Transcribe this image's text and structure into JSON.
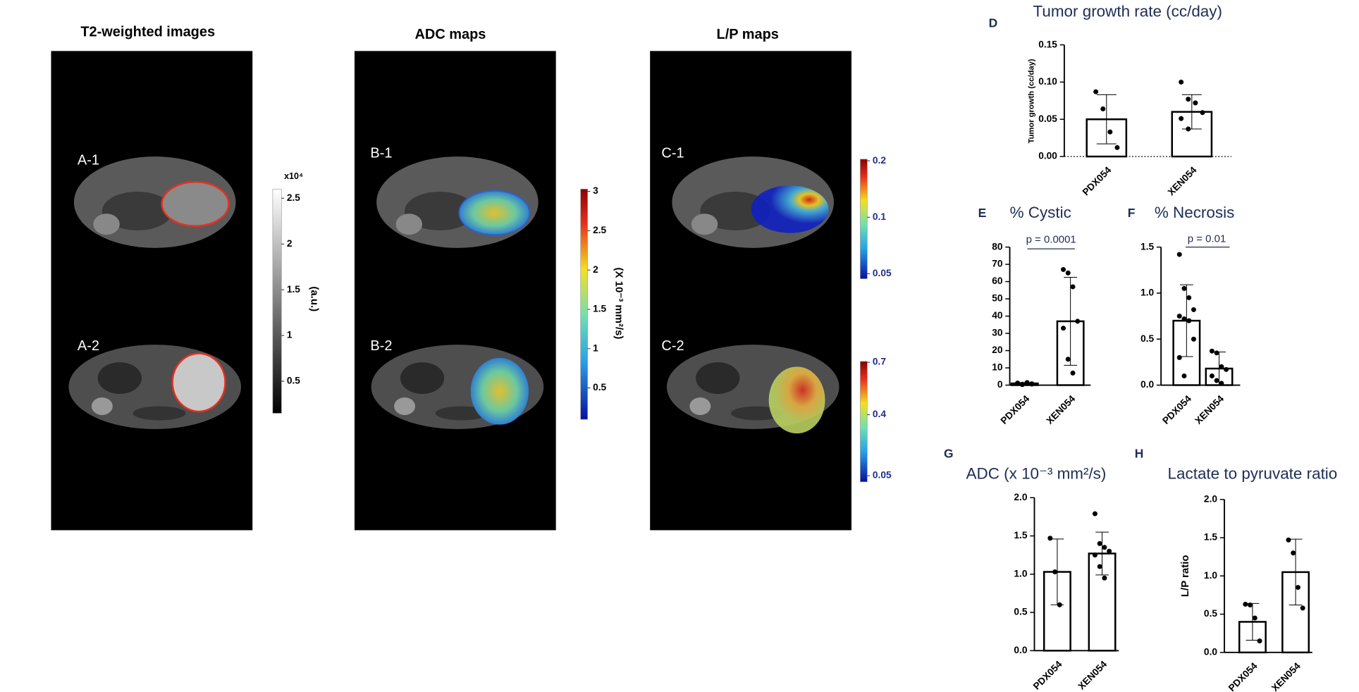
{
  "figure": {
    "image_titles": [
      "T2-weighted images",
      "ADC maps",
      "L/P maps"
    ],
    "image_labels": [
      "A-1",
      "A-2",
      "B-1",
      "B-2",
      "C-1",
      "C-2"
    ],
    "colorbars": [
      {
        "label": "(a.u.)",
        "multiplier": "x10⁴",
        "lim": [
          0.15,
          2.6
        ],
        "ticks": [
          0.5,
          1,
          1.5,
          2,
          2.5
        ],
        "scale": "linear",
        "colormap": "gray"
      },
      {
        "label": "(X 10⁻³ mm²/s)",
        "lim": [
          0.1,
          3.03
        ],
        "ticks": [
          0.5,
          1,
          1.5,
          2,
          2.5,
          3
        ],
        "scale": "linear",
        "colormap": "jet"
      },
      {
        "lim": [
          0.047,
          0.204
        ],
        "ticks": [
          0.2,
          0.1,
          0.05
        ],
        "scale": "log",
        "colormap": "jet"
      },
      {
        "lim": [
          0.015,
          0.705
        ],
        "ticks": [
          0.7,
          0.4,
          0.05
        ],
        "scale": "linear",
        "colormap": "jet"
      }
    ]
  },
  "chart_data": [
    {
      "type": "bar",
      "panel": "D",
      "title": "Tumor growth rate (cc/day)",
      "ylabel": "Tumor growth (cc/day)",
      "categories": [
        "PDX054",
        "XEN054"
      ],
      "values": [
        0.05,
        0.06
      ],
      "errors": [
        0.033,
        0.023
      ],
      "points": [
        [
          0.087,
          0.064,
          0.033,
          0.012
        ],
        [
          0.1,
          0.077,
          0.072,
          0.059,
          0.051,
          0.037
        ]
      ],
      "color": "#000000",
      "ylim": [
        0,
        0.15
      ],
      "yticks": [
        {
          "value": 0,
          "label": "0.00"
        },
        0.05,
        {
          "value": 0.1,
          "label": "0.10"
        },
        0.15
      ],
      "baseline_style": "dotted"
    },
    {
      "type": "bar",
      "panel": "E",
      "title": "% Cystic",
      "categories": [
        "PDX054",
        "XEN054"
      ],
      "values": [
        1,
        37
      ],
      "errors": [
        0.5,
        25.5
      ],
      "points": [
        [
          1,
          0.5,
          1.5,
          0.8,
          1.2,
          0.3,
          1,
          0.6
        ],
        [
          67,
          65,
          57,
          37,
          33,
          15,
          7
        ]
      ],
      "color": "#000000",
      "ylim": [
        0,
        80
      ],
      "yticks": [
        0,
        10,
        20,
        30,
        40,
        50,
        60,
        70,
        80
      ],
      "annotation": "p = 0.0001",
      "baseline_style": "solid"
    },
    {
      "type": "bar",
      "panel": "F",
      "title": "% Necrosis",
      "categories": [
        "PDX054",
        "XEN054"
      ],
      "values": [
        0.7,
        0.18
      ],
      "errors": [
        0.39,
        0.18
      ],
      "points": [
        [
          1.42,
          1.05,
          0.95,
          0.82,
          0.75,
          0.72,
          0.7,
          0.5,
          0.3,
          0.1
        ],
        [
          0.37,
          0.35,
          0.2,
          0.17,
          0.1,
          0.05,
          0.02
        ]
      ],
      "color": "#000000",
      "ylim": [
        0,
        1.5
      ],
      "yticks": [
        {
          "value": 0,
          "label": "0.0"
        },
        0.5,
        {
          "value": 1,
          "label": "1.0"
        },
        1.5
      ],
      "annotation": "p = 0.01",
      "baseline_style": "solid"
    },
    {
      "type": "bar",
      "panel": "G",
      "title": "ADC (x 10⁻³ mm²/s)",
      "categories": [
        "PDX054",
        "XEN054"
      ],
      "values": [
        1.03,
        1.27
      ],
      "errors": [
        0.43,
        0.28
      ],
      "points": [
        [
          1.47,
          1.03,
          0.6
        ],
        [
          1.79,
          1.4,
          1.35,
          1.3,
          1.25,
          1.1,
          0.95
        ]
      ],
      "color": "#000000",
      "ylim": [
        0,
        2
      ],
      "yticks": [
        {
          "value": 0,
          "label": "0.0"
        },
        0.5,
        {
          "value": 1,
          "label": "1.0"
        },
        1.5,
        {
          "value": 2,
          "label": "2.0"
        }
      ],
      "baseline_style": "solid"
    },
    {
      "type": "bar",
      "panel": "H",
      "title": "Lactate to pyruvate ratio",
      "ylabel": "L/P ratio",
      "categories": [
        "PDX054",
        "XEN054"
      ],
      "values": [
        0.4,
        1.05
      ],
      "errors": [
        0.24,
        0.43
      ],
      "points": [
        [
          0.63,
          0.62,
          0.45,
          0.15
        ],
        [
          1.47,
          1.3,
          0.85,
          0.58
        ]
      ],
      "color": "#000000",
      "ylim": [
        0,
        2
      ],
      "yticks": [
        {
          "value": 0,
          "label": "0.0"
        },
        0.5,
        {
          "value": 1,
          "label": "1.0"
        },
        1.5,
        {
          "value": 2,
          "label": "2.0"
        }
      ],
      "baseline_style": "solid"
    }
  ]
}
